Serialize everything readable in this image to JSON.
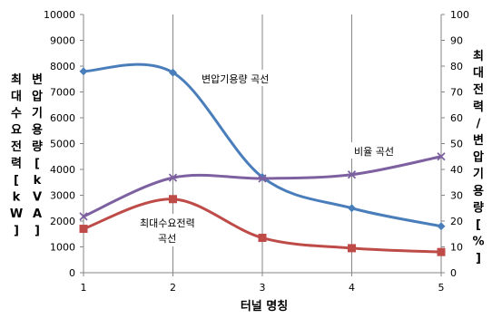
{
  "chart_data": {
    "type": "line",
    "x": [
      1,
      2,
      3,
      4,
      5
    ],
    "xlabel": "터널 명칭",
    "ylabel_left_outer": "최대수요전력[kW]",
    "ylabel_left_inner": "변압기용량[kVA]",
    "ylabel_right": "최대전력/변압기용량[%]",
    "ylim_left": [
      0,
      10000
    ],
    "yticks_left": [
      "0",
      "1000",
      "2000",
      "3000",
      "4000",
      "5000",
      "6000",
      "7000",
      "8000",
      "9000",
      "10000"
    ],
    "ylim_right": [
      0,
      100
    ],
    "yticks_right": [
      "0",
      "10",
      "20",
      "30",
      "40",
      "50",
      "60",
      "70",
      "80",
      "90",
      "100"
    ],
    "xticks": [
      "1",
      "2",
      "3",
      "4",
      "5"
    ],
    "grid": "vertical",
    "series": [
      {
        "name": "변압기용량 곡선",
        "axis": "left",
        "color": "#4a7ebb",
        "marker": "diamond",
        "values": [
          7800,
          7750,
          3700,
          2500,
          1800
        ]
      },
      {
        "name": "최대수요전력 곡선",
        "axis": "left",
        "color": "#be4b48",
        "marker": "square",
        "values": [
          1700,
          2850,
          1350,
          950,
          800
        ]
      },
      {
        "name": "비율 곡선",
        "axis": "right",
        "color": "#7d60a0",
        "marker": "x",
        "values": [
          21.8,
          36.8,
          36.5,
          38,
          45
        ]
      }
    ],
    "annotations": {
      "transformer": "변압기용량 곡선",
      "ratio": "비율 곡선",
      "demand_1": "최대수요전력",
      "demand_2": "곡선"
    }
  }
}
